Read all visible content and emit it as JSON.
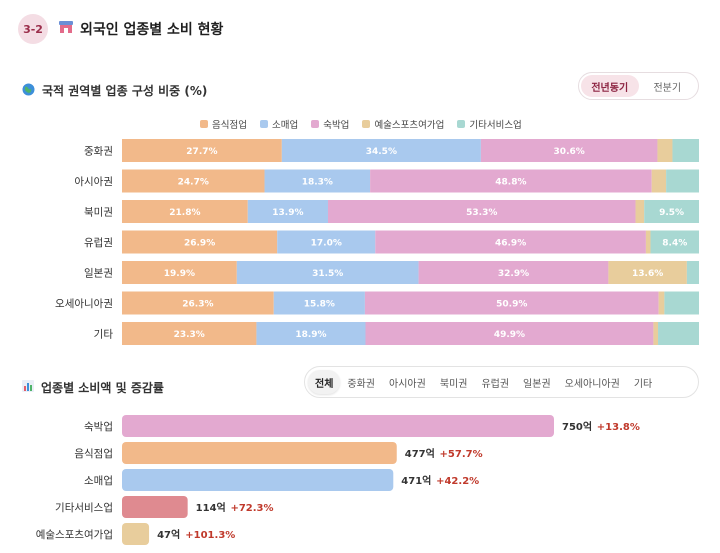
{
  "header": {
    "section_number": "3-2",
    "icon": "store-icon",
    "title": "외국인 업종별 소비 현황"
  },
  "composition": {
    "icon": "globe-icon",
    "title": "국적 권역별 업종 구성 비중 (%)",
    "toggle": {
      "options": [
        "전년동기",
        "전분기"
      ],
      "selected": "전년동기"
    }
  },
  "spending": {
    "icon": "bar-chart-icon",
    "title": "업종별 소비액 및 증감률",
    "tabs": [
      "전체",
      "중화권",
      "아시아권",
      "북미권",
      "유럽권",
      "일본권",
      "오세아니아권",
      "기타"
    ],
    "selected_tab": "전체"
  },
  "colors": {
    "food": "#f2b98a",
    "retail": "#a9c9ee",
    "lodging": "#e3a9d0",
    "culture": "#e8cd9c",
    "other": "#a8d8d2",
    "other_hbar": "#df8a90",
    "accent": "#c0392b"
  },
  "chart_data": [
    {
      "type": "bar",
      "stacked": true,
      "orientation": "horizontal",
      "title": "국적 권역별 업종 구성 비중 (%)",
      "categories": [
        "중화권",
        "아시아권",
        "북미권",
        "유럽권",
        "일본권",
        "오세아니아권",
        "기타"
      ],
      "legend_position": "top",
      "xlim": [
        0,
        100
      ],
      "series": [
        {
          "name": "음식점업",
          "values": [
            27.7,
            24.7,
            21.8,
            26.9,
            19.9,
            26.3,
            23.3
          ]
        },
        {
          "name": "소매업",
          "values": [
            34.5,
            18.3,
            13.9,
            17.0,
            31.5,
            15.8,
            18.9
          ]
        },
        {
          "name": "숙박업",
          "values": [
            30.6,
            48.8,
            53.3,
            46.9,
            32.9,
            50.9,
            49.9
          ]
        },
        {
          "name": "예술스포츠여가업",
          "values": [
            2.6,
            2.5,
            1.5,
            0.8,
            13.6,
            1.0,
            0.8
          ]
        },
        {
          "name": "기타서비스업",
          "values": [
            4.6,
            5.7,
            9.5,
            8.4,
            2.1,
            6.0,
            7.1
          ]
        }
      ],
      "label_threshold": 8
    },
    {
      "type": "bar",
      "orientation": "horizontal",
      "title": "업종별 소비액 및 증감률",
      "categories": [
        "숙박업",
        "음식점업",
        "소매업",
        "기타서비스업",
        "예술스포츠여가업"
      ],
      "values": [
        750,
        477,
        471,
        114,
        47
      ],
      "unit": "억",
      "changes": [
        "+13.8%",
        "+57.7%",
        "+42.2%",
        "+72.3%",
        "+101.3%"
      ],
      "xlim": [
        0,
        750
      ]
    }
  ]
}
